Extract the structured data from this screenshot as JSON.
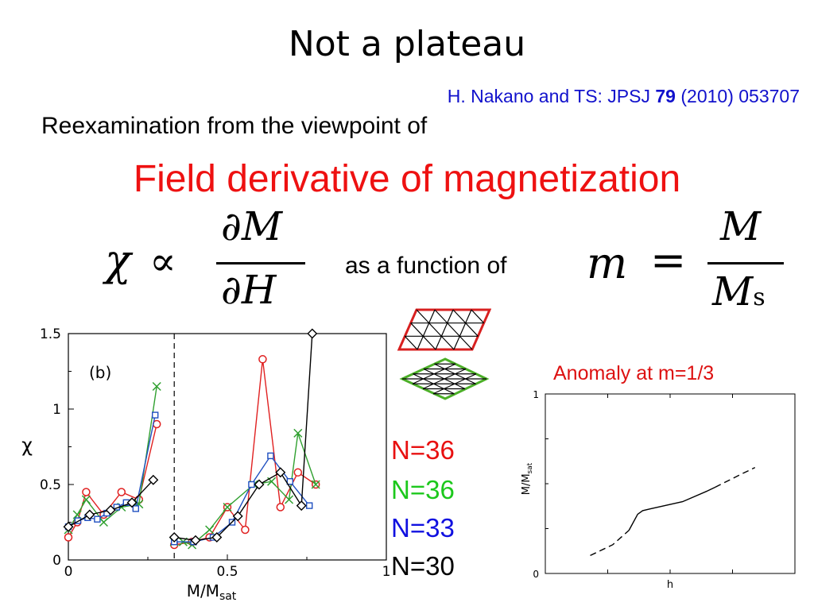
{
  "slide": {
    "title": "Not a plateau",
    "citation": {
      "authors_journal": "H. Nakano and TS: JPSJ ",
      "volume": "79",
      "rest": " (2010) 053707"
    },
    "reexamination": "Reexamination from the viewpoint of",
    "headline": "Field derivative of magnetization",
    "formula_left": {
      "chi": "χ",
      "propto": "∝",
      "numerator": "∂M",
      "denominator": "∂H"
    },
    "as_function_of": "as a function of",
    "formula_right": {
      "m": "m",
      "eq": "=",
      "numerator": "M",
      "denominator": "M",
      "denominator_sub": "s"
    },
    "legend": [
      {
        "label": "N=36",
        "color": "#e81010"
      },
      {
        "label": "N=36",
        "color": "#1cc81c"
      },
      {
        "label": "N=33",
        "color": "#1010e0"
      },
      {
        "label": "N=30",
        "color": "#000000"
      }
    ],
    "anomaly_text": "Anomaly at m=1/3",
    "lattice_icons": [
      "triangular-lattice-red-parallelogram",
      "triangular-lattice-green-rhombus"
    ]
  },
  "chart_data": [
    {
      "type": "line",
      "panel_label": "(b)",
      "xlabel": "M/M",
      "xlabel_sub": "sat",
      "ylabel": "χ",
      "xlim": [
        0,
        1
      ],
      "ylim": [
        0,
        1.5
      ],
      "xticks": [
        "0",
        "0.5",
        "1"
      ],
      "yticks": [
        "0",
        "0.5",
        "1",
        "1.5"
      ],
      "dashed_vertical_at": 0.333,
      "series": [
        {
          "color": "#e02020",
          "marker": "circle",
          "x": [
            0,
            0.028,
            0.056,
            0.111,
            0.167,
            0.222,
            0.278,
            0.333,
            0.389,
            0.444,
            0.5,
            0.556,
            0.611,
            0.667,
            0.722,
            0.778
          ],
          "y": [
            0.15,
            0.25,
            0.45,
            0.3,
            0.45,
            0.4,
            0.9,
            0.1,
            0.12,
            0.15,
            0.35,
            0.2,
            1.33,
            0.35,
            0.58,
            0.5
          ]
        },
        {
          "color": "#30a030",
          "marker": "x",
          "x": [
            0,
            0.028,
            0.056,
            0.111,
            0.167,
            0.222,
            0.278,
            0.333,
            0.361,
            0.389,
            0.444,
            0.5,
            0.583,
            0.639,
            0.694,
            0.722,
            0.778
          ],
          "y": [
            0.2,
            0.3,
            0.4,
            0.25,
            0.35,
            0.37,
            1.15,
            0.12,
            0.12,
            0.1,
            0.2,
            0.35,
            0.5,
            0.52,
            0.4,
            0.84,
            0.5
          ]
        },
        {
          "color": "#2050c0",
          "marker": "square",
          "x": [
            0,
            0.03,
            0.061,
            0.091,
            0.121,
            0.152,
            0.182,
            0.212,
            0.273,
            0.333,
            0.394,
            0.455,
            0.515,
            0.576,
            0.636,
            0.697,
            0.758
          ],
          "y": [
            0.22,
            0.26,
            0.28,
            0.27,
            0.31,
            0.35,
            0.38,
            0.34,
            0.96,
            0.12,
            0.12,
            0.15,
            0.25,
            0.5,
            0.69,
            0.52,
            0.36
          ]
        },
        {
          "color": "#000000",
          "marker": "diamond",
          "x": [
            0,
            0.067,
            0.133,
            0.2,
            0.267,
            0.333,
            0.4,
            0.467,
            0.533,
            0.6,
            0.667,
            0.733,
            0.767
          ],
          "y": [
            0.22,
            0.3,
            0.33,
            0.38,
            0.53,
            0.15,
            0.13,
            0.15,
            0.29,
            0.5,
            0.58,
            0.36,
            1.5
          ]
        }
      ]
    },
    {
      "type": "line",
      "xlabel": "h",
      "ylabel": "M/M",
      "ylabel_sub": "sat",
      "xlim": [
        0,
        1
      ],
      "ylim": [
        0,
        1
      ],
      "yticks": [
        "0",
        "1"
      ],
      "segments": [
        {
          "style": "dashed",
          "x": [
            0.18,
            0.27,
            0.335
          ],
          "y": [
            0.1,
            0.16,
            0.24
          ]
        },
        {
          "style": "solid",
          "x": [
            0.335,
            0.37,
            0.39,
            0.42,
            0.55,
            0.65,
            0.68
          ],
          "y": [
            0.24,
            0.33,
            0.35,
            0.36,
            0.4,
            0.46,
            0.48
          ]
        },
        {
          "style": "dashed",
          "x": [
            0.68,
            0.78,
            0.84
          ],
          "y": [
            0.48,
            0.55,
            0.59
          ]
        }
      ]
    }
  ]
}
